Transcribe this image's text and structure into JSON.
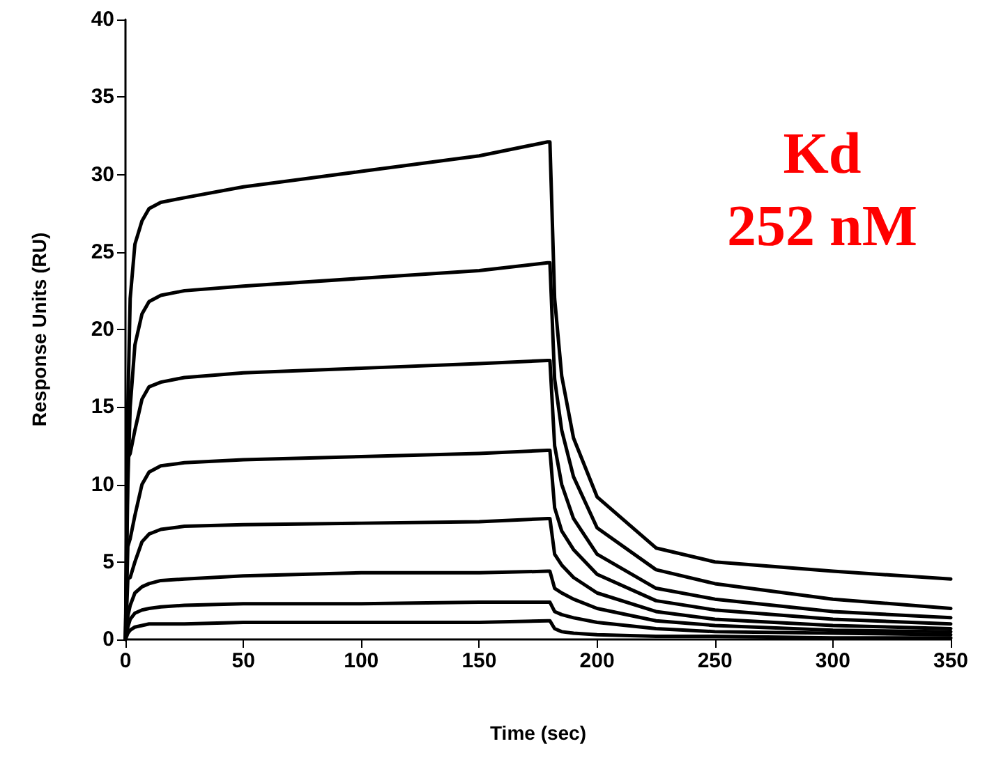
{
  "chart_data": {
    "type": "line",
    "xlabel": "Time (sec)",
    "ylabel": "Response Units (RU)",
    "annotations": [
      "Kd\n252 nM"
    ],
    "x": [
      0,
      1,
      2,
      4,
      7,
      10,
      15,
      25,
      50,
      100,
      150,
      179,
      180,
      182,
      185,
      190,
      200,
      225,
      250,
      300,
      350
    ],
    "series": [
      {
        "color": "#000000",
        "values": [
          0,
          15,
          22,
          25.5,
          27,
          27.8,
          28.2,
          28.5,
          29.2,
          30.2,
          31.2,
          32.1,
          32.1,
          22,
          17,
          13,
          9.2,
          5.9,
          5.0,
          4.4,
          3.9
        ]
      },
      {
        "color": "#000000",
        "values": [
          0,
          10,
          15,
          19,
          21,
          21.8,
          22.2,
          22.5,
          22.8,
          23.3,
          23.8,
          24.3,
          24.3,
          16.8,
          13.5,
          10.5,
          7.2,
          4.5,
          3.6,
          2.6,
          2.0
        ]
      },
      {
        "color": "#000000",
        "values": [
          0,
          11.7,
          12,
          13.5,
          15.5,
          16.3,
          16.6,
          16.9,
          17.2,
          17.5,
          17.8,
          18.0,
          18.0,
          12.5,
          10,
          7.8,
          5.5,
          3.3,
          2.6,
          1.8,
          1.4
        ]
      },
      {
        "color": "#000000",
        "values": [
          0,
          6,
          6.5,
          8,
          10,
          10.8,
          11.2,
          11.4,
          11.6,
          11.8,
          12.0,
          12.2,
          12.2,
          8.5,
          7,
          5.8,
          4.2,
          2.5,
          1.9,
          1.3,
          1.0
        ]
      },
      {
        "color": "#000000",
        "values": [
          0,
          3.9,
          4.0,
          5,
          6.3,
          6.8,
          7.1,
          7.3,
          7.4,
          7.5,
          7.6,
          7.8,
          7.8,
          5.5,
          4.8,
          4,
          3,
          1.8,
          1.3,
          0.9,
          0.7
        ]
      },
      {
        "color": "#000000",
        "values": [
          0,
          1.5,
          2.2,
          3,
          3.4,
          3.6,
          3.8,
          3.9,
          4.1,
          4.3,
          4.3,
          4.4,
          4.4,
          3.3,
          3,
          2.6,
          2,
          1.2,
          0.9,
          0.6,
          0.5
        ]
      },
      {
        "color": "#000000",
        "values": [
          0,
          0.8,
          1.3,
          1.7,
          1.9,
          2.0,
          2.1,
          2.2,
          2.3,
          2.3,
          2.4,
          2.4,
          2.4,
          1.8,
          1.6,
          1.4,
          1.1,
          0.7,
          0.5,
          0.4,
          0.3
        ]
      },
      {
        "color": "#000000",
        "values": [
          0,
          0.4,
          0.6,
          0.8,
          0.9,
          1.0,
          1.0,
          1.0,
          1.1,
          1.1,
          1.1,
          1.2,
          1.2,
          0.7,
          0.5,
          0.4,
          0.3,
          0.2,
          0.2,
          0.1,
          0.1
        ]
      }
    ],
    "xlim": [
      0,
      350
    ],
    "xticks": [
      0,
      50,
      100,
      150,
      200,
      250,
      300,
      350
    ],
    "ylim": [
      0,
      40
    ],
    "yticks": [
      0,
      5,
      10,
      15,
      20,
      25,
      30,
      35,
      40
    ],
    "grid": false,
    "marker": "none",
    "line_style": "solid"
  }
}
